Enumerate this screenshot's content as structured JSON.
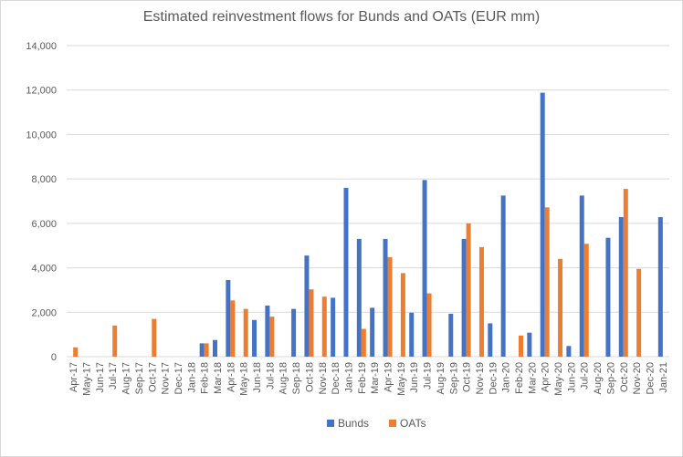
{
  "chart_data": {
    "type": "bar",
    "title": "Estimated reinvestment flows for Bunds and OATs (EUR mm)",
    "xlabel": "",
    "ylabel": "",
    "ylim": [
      0,
      14000
    ],
    "yticks": [
      0,
      2000,
      4000,
      6000,
      8000,
      10000,
      12000,
      14000
    ],
    "ytick_labels": [
      "0",
      "2,000",
      "4,000",
      "6,000",
      "8,000",
      "10,000",
      "12,000",
      "14,000"
    ],
    "grid": true,
    "legend_position": "bottom",
    "categories": [
      "Apr-17",
      "May-17",
      "Jun-17",
      "Jul-17",
      "Aug-17",
      "Sep-17",
      "Oct-17",
      "Nov-17",
      "Dec-17",
      "Jan-18",
      "Feb-18",
      "Mar-18",
      "Apr-18",
      "May-18",
      "Jun-18",
      "Jul-18",
      "Aug-18",
      "Sep-18",
      "Oct-18",
      "Nov-18",
      "Dec-18",
      "Jan-19",
      "Feb-19",
      "Mar-19",
      "Apr-19",
      "May-19",
      "Jun-19",
      "Jul-19",
      "Aug-19",
      "Sep-19",
      "Oct-19",
      "Nov-19",
      "Dec-19",
      "Jan-20",
      "Feb-20",
      "Mar-20",
      "Apr-20",
      "May-20",
      "Jun-20",
      "Jul-20",
      "Aug-20",
      "Sep-20",
      "Oct-20",
      "Nov-20",
      "Dec-20",
      "Jan-21"
    ],
    "series": [
      {
        "name": "Bunds",
        "color": "#4472c4",
        "values": [
          0,
          0,
          0,
          0,
          0,
          0,
          0,
          0,
          0,
          0,
          600,
          750,
          3450,
          0,
          1650,
          2300,
          0,
          2150,
          4550,
          0,
          2650,
          7600,
          5300,
          2200,
          5300,
          0,
          1980,
          7950,
          0,
          1930,
          5300,
          0,
          1500,
          7250,
          0,
          1080,
          11880,
          0,
          480,
          7250,
          0,
          5350,
          6280,
          0,
          0,
          6280
        ]
      },
      {
        "name": "OATs",
        "color": "#ed7d31",
        "values": [
          420,
          0,
          0,
          1400,
          0,
          0,
          1700,
          0,
          0,
          0,
          600,
          0,
          2530,
          2150,
          0,
          1800,
          0,
          0,
          3030,
          2700,
          0,
          0,
          1250,
          0,
          4480,
          3760,
          0,
          2850,
          0,
          0,
          6000,
          4930,
          0,
          0,
          950,
          0,
          6720,
          4400,
          0,
          5080,
          0,
          0,
          7550,
          3950,
          0,
          0
        ]
      }
    ]
  }
}
